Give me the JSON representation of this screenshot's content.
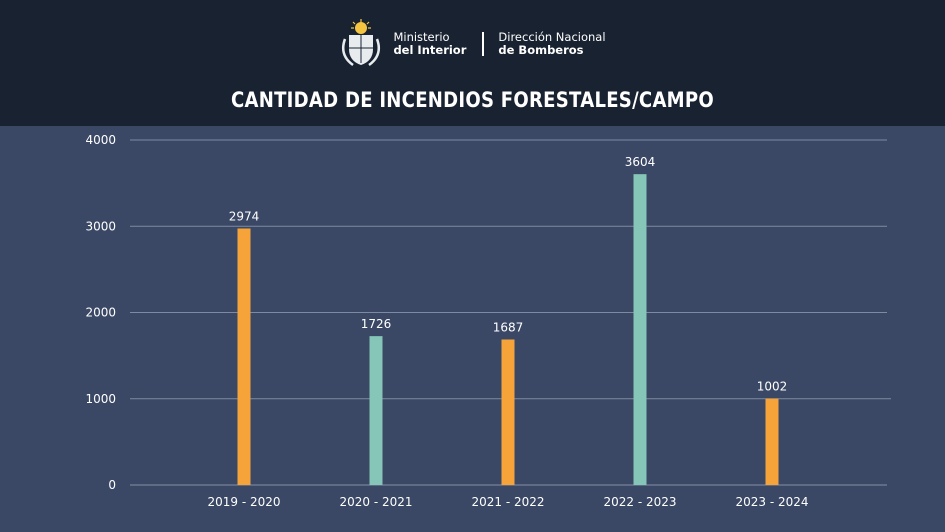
{
  "header": {
    "org_left_line1": "Ministerio",
    "org_left_line2": "del Interior",
    "org_right_line1": "Dirección Nacional",
    "org_right_line2": "de Bomberos",
    "emblem_icon": "coat-of-arms-icon"
  },
  "colors": {
    "header_bg": "#192230",
    "body_bg": "#3a4765",
    "orange": "#f6a43a",
    "teal": "#85c6b8"
  },
  "chart_data": {
    "type": "bar",
    "title": "CANTIDAD DE INCENDIOS FORESTALES/CAMPO",
    "categories": [
      "2019 - 2020",
      "2020 - 2021",
      "2021 - 2022",
      "2022 - 2023",
      "2023 - 2024"
    ],
    "values": [
      2974,
      1726,
      1687,
      3604,
      1002
    ],
    "bar_colors": [
      "#f6a43a",
      "#85c6b8",
      "#f6a43a",
      "#85c6b8",
      "#f6a43a"
    ],
    "ylim": [
      0,
      4000
    ],
    "yticks": [
      "0",
      "1000",
      "2000",
      "3000",
      "4000"
    ],
    "grid": true,
    "xlabel": "",
    "ylabel": ""
  }
}
